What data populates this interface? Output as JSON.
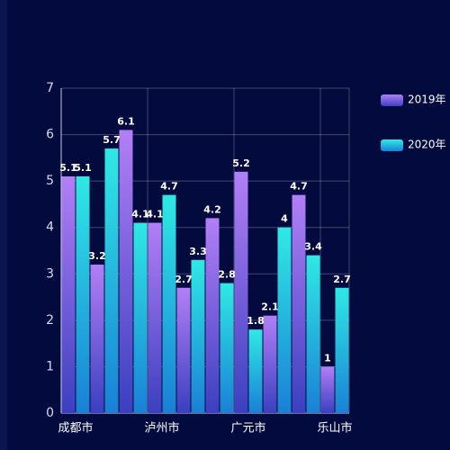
{
  "chart_data": {
    "type": "bar",
    "categories": [
      "成都市",
      null,
      null,
      "泸州市",
      null,
      null,
      "广元市",
      null,
      null,
      "乐山市"
    ],
    "series": [
      {
        "name": "2019年",
        "color": "#b27ff6",
        "color_bottom": "#3b3fc0",
        "values": [
          5.1,
          3.2,
          6.1,
          4.1,
          2.7,
          4.2,
          5.2,
          2.1,
          4.7,
          1
        ]
      },
      {
        "name": "2020年",
        "color": "#2fe9e4",
        "color_bottom": "#1a80d6",
        "values": [
          5.1,
          5.7,
          4.1,
          4.7,
          3.3,
          2.8,
          1.8,
          4,
          3.4,
          2.7
        ]
      }
    ],
    "ylim": [
      0,
      7
    ],
    "yticks": [
      0,
      1,
      2,
      3,
      4,
      5,
      6,
      7
    ],
    "grid": true,
    "legend": "right"
  }
}
